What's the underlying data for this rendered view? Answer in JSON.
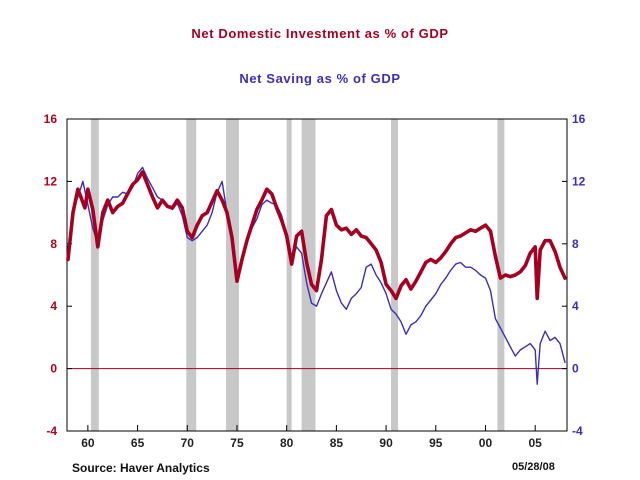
{
  "chart_data": {
    "type": "line",
    "title": "Net Domestic Investment as % of GDP",
    "subtitle": "Net Saving as % of GDP",
    "source": "Source: Haver Analytics",
    "date": "05/28/08",
    "x_range": [
      1957.9,
      2008.2
    ],
    "ylim": [
      -4,
      16
    ],
    "y_ticks": [
      -4,
      0,
      4,
      8,
      12,
      16
    ],
    "y_tick_labels_left": [
      "-4",
      "0",
      "4",
      "8",
      "12",
      "16"
    ],
    "y_tick_labels_right": [
      "-4",
      "0",
      "4",
      "8",
      "12",
      "16"
    ],
    "x_ticks": [
      1960,
      1965,
      1970,
      1975,
      1980,
      1985,
      1990,
      1995,
      2000,
      2005
    ],
    "x_tick_labels": [
      "60",
      "65",
      "70",
      "75",
      "80",
      "85",
      "90",
      "95",
      "00",
      "05"
    ],
    "zero_line": 0,
    "recessions": [
      [
        1960.3,
        1961.1
      ],
      [
        1969.9,
        1970.9
      ],
      [
        1973.9,
        1975.2
      ],
      [
        1980.0,
        1980.5
      ],
      [
        1981.5,
        1982.9
      ],
      [
        1990.5,
        1991.2
      ],
      [
        2001.2,
        2001.9
      ]
    ],
    "colors": {
      "investment": "#a50021",
      "saving": "#3a2fb5",
      "recession": "#c8c8c8",
      "zero": "#a50021"
    },
    "series": [
      {
        "name": "Net Domestic Investment as % of GDP",
        "x": [
          1958.0,
          1958.5,
          1959.0,
          1959.3,
          1959.7,
          1960.0,
          1960.5,
          1961.0,
          1961.5,
          1962.0,
          1962.5,
          1963.0,
          1963.5,
          1964.0,
          1964.5,
          1965.0,
          1965.5,
          1966.0,
          1966.5,
          1967.0,
          1967.5,
          1968.0,
          1968.5,
          1969.0,
          1969.5,
          1970.0,
          1970.5,
          1971.0,
          1971.5,
          1972.0,
          1972.5,
          1973.0,
          1973.5,
          1974.0,
          1974.5,
          1975.0,
          1975.5,
          1976.0,
          1976.5,
          1977.0,
          1977.5,
          1978.0,
          1978.5,
          1979.0,
          1979.5,
          1980.0,
          1980.5,
          1981.0,
          1981.5,
          1982.0,
          1982.5,
          1983.0,
          1983.5,
          1984.0,
          1984.5,
          1985.0,
          1985.5,
          1986.0,
          1986.5,
          1987.0,
          1987.5,
          1988.0,
          1988.5,
          1989.0,
          1989.5,
          1990.0,
          1990.5,
          1991.0,
          1991.5,
          1992.0,
          1992.5,
          1993.0,
          1993.5,
          1994.0,
          1994.5,
          1995.0,
          1995.5,
          1996.0,
          1996.5,
          1997.0,
          1997.5,
          1998.0,
          1998.5,
          1999.0,
          1999.5,
          2000.0,
          2000.5,
          2001.0,
          2001.5,
          2002.0,
          2002.5,
          2003.0,
          2003.5,
          2004.0,
          2004.5,
          2005.0,
          2005.2,
          2005.5,
          2006.0,
          2006.5,
          2007.0,
          2007.5,
          2008.0
        ],
        "values": [
          7.0,
          10.0,
          11.5,
          11.0,
          10.3,
          11.5,
          10.2,
          7.8,
          10.0,
          10.8,
          10.0,
          10.4,
          10.6,
          11.2,
          11.8,
          12.1,
          12.6,
          11.8,
          11.0,
          10.3,
          10.8,
          10.4,
          10.3,
          10.8,
          10.3,
          8.8,
          8.4,
          9.2,
          9.8,
          10.0,
          10.7,
          11.4,
          10.8,
          10.0,
          8.4,
          5.6,
          7.0,
          8.2,
          9.2,
          10.2,
          10.8,
          11.5,
          11.2,
          10.3,
          9.5,
          8.5,
          6.7,
          8.5,
          8.8,
          6.8,
          5.4,
          5.0,
          7.0,
          9.8,
          10.2,
          9.2,
          8.9,
          9.0,
          8.6,
          8.9,
          8.5,
          8.4,
          8.0,
          7.6,
          6.8,
          5.4,
          5.0,
          4.5,
          5.3,
          5.7,
          5.1,
          5.6,
          6.2,
          6.8,
          7.0,
          6.8,
          7.1,
          7.5,
          8.0,
          8.4,
          8.5,
          8.7,
          8.9,
          8.8,
          9.0,
          9.2,
          8.8,
          7.2,
          5.8,
          6.0,
          5.9,
          6.0,
          6.2,
          6.6,
          7.4,
          7.8,
          4.5,
          7.6,
          8.2,
          8.2,
          7.5,
          6.5,
          5.8
        ]
      },
      {
        "name": "Net Saving as % of GDP",
        "x": [
          1958.5,
          1959.0,
          1959.5,
          1960.0,
          1960.5,
          1961.0,
          1961.5,
          1962.0,
          1962.5,
          1963.0,
          1963.5,
          1964.0,
          1964.5,
          1965.0,
          1965.5,
          1966.0,
          1966.5,
          1967.0,
          1967.5,
          1968.0,
          1968.5,
          1969.0,
          1969.5,
          1970.0,
          1970.5,
          1971.0,
          1971.5,
          1972.0,
          1972.5,
          1973.0,
          1973.5,
          1974.0,
          1974.5,
          1975.0,
          1975.5,
          1976.0,
          1976.5,
          1977.0,
          1977.5,
          1978.0,
          1978.5,
          1979.0,
          1979.5,
          1980.0,
          1980.5,
          1981.0,
          1981.5,
          1982.0,
          1982.5,
          1983.0,
          1983.5,
          1984.0,
          1984.5,
          1985.0,
          1985.5,
          1986.0,
          1986.5,
          1987.0,
          1987.5,
          1988.0,
          1988.5,
          1989.0,
          1989.5,
          1990.0,
          1990.5,
          1991.0,
          1991.5,
          1992.0,
          1992.5,
          1993.0,
          1993.5,
          1994.0,
          1994.5,
          1995.0,
          1995.5,
          1996.0,
          1996.5,
          1997.0,
          1997.5,
          1998.0,
          1998.5,
          1999.0,
          1999.5,
          2000.0,
          2000.5,
          2001.0,
          2001.5,
          2002.0,
          2002.5,
          2003.0,
          2003.5,
          2004.0,
          2004.5,
          2005.0,
          2005.2,
          2005.5,
          2006.0,
          2006.5,
          2007.0,
          2007.5,
          2008.0
        ],
        "values": [
          10.2,
          11.0,
          12.0,
          10.5,
          9.0,
          8.0,
          9.5,
          10.5,
          11.0,
          11.0,
          11.3,
          11.2,
          11.6,
          12.5,
          12.9,
          12.2,
          11.6,
          11.0,
          10.8,
          10.4,
          10.2,
          10.6,
          9.8,
          8.4,
          8.2,
          8.4,
          8.8,
          9.2,
          10.0,
          11.3,
          12.0,
          10.0,
          8.5,
          6.0,
          6.8,
          8.4,
          9.0,
          9.6,
          10.5,
          10.8,
          10.6,
          10.5,
          9.8,
          8.5,
          7.0,
          7.8,
          7.4,
          5.5,
          4.2,
          4.0,
          4.8,
          5.5,
          6.2,
          5.0,
          4.2,
          3.8,
          4.5,
          4.8,
          5.2,
          6.5,
          6.7,
          6.0,
          5.5,
          4.8,
          3.8,
          3.5,
          3.0,
          2.2,
          2.8,
          3.0,
          3.4,
          4.0,
          4.4,
          4.8,
          5.4,
          5.8,
          6.3,
          6.7,
          6.8,
          6.5,
          6.5,
          6.3,
          6.0,
          5.8,
          5.0,
          3.2,
          2.6,
          2.0,
          1.4,
          0.8,
          1.2,
          1.4,
          1.6,
          1.2,
          -1.0,
          1.6,
          2.4,
          1.8,
          2.0,
          1.6,
          0.4
        ]
      }
    ]
  }
}
